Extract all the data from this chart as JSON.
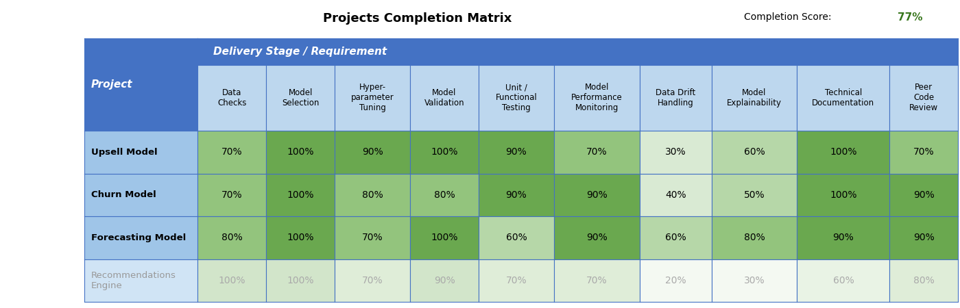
{
  "title": "Projects Completion Matrix",
  "completion_score_label": "Completion Score:",
  "completion_score_value": "77%",
  "delivery_stage_label": "Delivery Stage / Requirement",
  "project_label": "Project",
  "columns": [
    "Data\nChecks",
    "Model\nSelection",
    "Hyper-\nparameter\nTuning",
    "Model\nValidation",
    "Unit /\nFunctional\nTesting",
    "Model\nPerformance\nMonitoring",
    "Data Drift\nHandling",
    "Model\nExplainability",
    "Technical\nDocumentation",
    "Peer\nCode\nReview"
  ],
  "rows": [
    "Upsell Model",
    "Churn Model",
    "Forecasting Model",
    "Recommendations\nEngine"
  ],
  "values": [
    [
      70,
      100,
      90,
      100,
      90,
      70,
      30,
      60,
      100,
      70
    ],
    [
      70,
      100,
      80,
      80,
      90,
      90,
      40,
      50,
      100,
      90
    ],
    [
      80,
      100,
      70,
      100,
      60,
      90,
      60,
      80,
      90,
      90
    ],
    [
      100,
      100,
      70,
      90,
      70,
      70,
      20,
      30,
      60,
      80
    ]
  ],
  "faded_last_row": true,
  "header_bg": "#4472C4",
  "header_text_color": "#FFFFFF",
  "row_label_bg": "#9FC5E8",
  "row_label_bg_faded": "#D0E4F5",
  "col_header_bg": "#BDD7EE",
  "title_color": "#000000",
  "score_label_color": "#000000",
  "score_value_color": "#38761D",
  "green_high": "#6AA84F",
  "green_mid": "#93C47D",
  "green_light": "#B6D7A8",
  "green_pale": "#D9EAD3",
  "border_color": "#4472C4",
  "col_rel_widths": [
    1.0,
    1.0,
    1.1,
    1.0,
    1.1,
    1.25,
    1.05,
    1.25,
    1.35,
    1.0
  ]
}
